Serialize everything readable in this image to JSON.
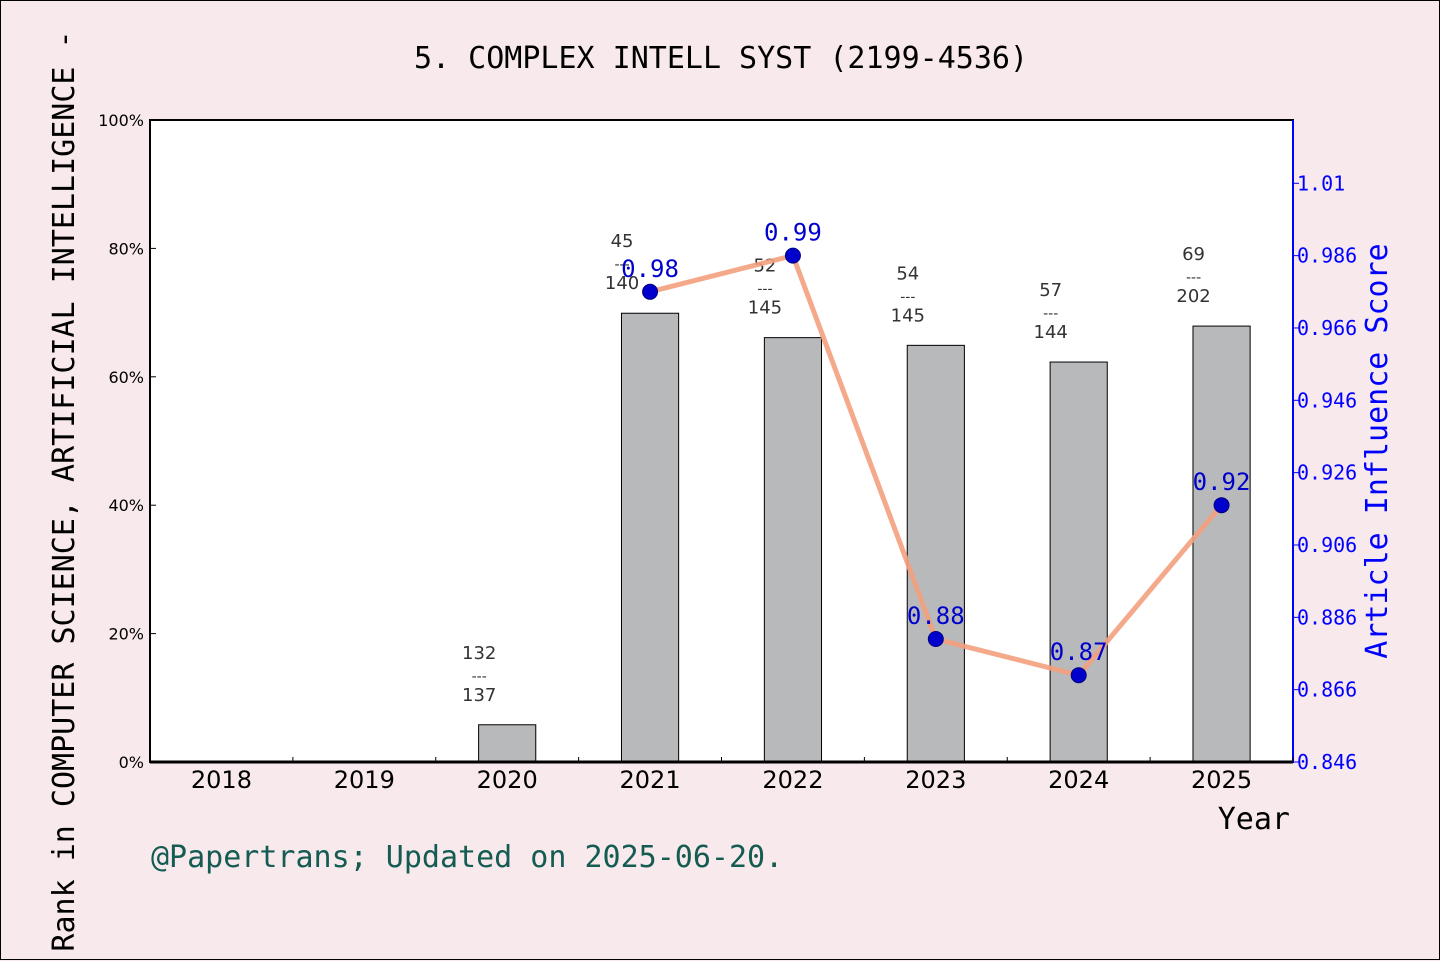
{
  "chart_data": {
    "type": "bar",
    "title": "5. COMPLEX INTELL SYST (2199-4536)",
    "xlabel": "Year",
    "ylabel_left": "Rank in COMPUTER SCIENCE, ARTIFICIAL INTELLIGENCE -",
    "ylabel_right": "Article Influence Score",
    "footer": "@Papertrans; Updated on 2025-06-20.",
    "categories": [
      "2018",
      "2019",
      "2020",
      "2021",
      "2022",
      "2023",
      "2024",
      "2025"
    ],
    "left_axis": {
      "ylim": [
        0,
        100
      ],
      "ticks": [
        0,
        20,
        40,
        60,
        80,
        100
      ],
      "tick_labels": [
        "0%",
        "20%",
        "40%",
        "60%",
        "80%",
        "100%"
      ]
    },
    "right_axis": {
      "ylim": [
        0.846,
        1.0235
      ],
      "ticks": [
        0.846,
        0.866,
        0.886,
        0.906,
        0.926,
        0.946,
        0.966,
        0.986,
        1.006
      ],
      "tick_labels": [
        "0.846",
        "0.866",
        "0.886",
        "0.906",
        "0.926",
        "0.946",
        "0.966",
        "0.986",
        "1.01"
      ],
      "color": "#0000ff"
    },
    "bars": {
      "name": "rank percentile",
      "color": "#b8b9ba",
      "values": [
        null,
        null,
        5.8,
        69.9,
        66.1,
        64.9,
        62.3,
        67.9
      ],
      "rank_labels": [
        null,
        null,
        {
          "rank": "132",
          "sep": "---",
          "total": "137"
        },
        {
          "rank": "45",
          "sep": "---",
          "total": "140"
        },
        {
          "rank": "52",
          "sep": "---",
          "total": "145"
        },
        {
          "rank": "54",
          "sep": "---",
          "total": "145"
        },
        {
          "rank": "57",
          "sep": "---",
          "total": "144"
        },
        {
          "rank": "69",
          "sep": "---",
          "total": "202"
        }
      ]
    },
    "line": {
      "name": "Article Influence Score",
      "color": "#f4a07e",
      "marker_color": "#0000cc",
      "label_color": "#0000cc",
      "values": [
        null,
        null,
        null,
        0.976,
        0.986,
        0.88,
        0.87,
        0.917
      ],
      "labels": [
        null,
        null,
        null,
        "0.98",
        "0.99",
        "0.88",
        "0.87",
        "0.92"
      ]
    },
    "grid": false,
    "legend": "none"
  }
}
